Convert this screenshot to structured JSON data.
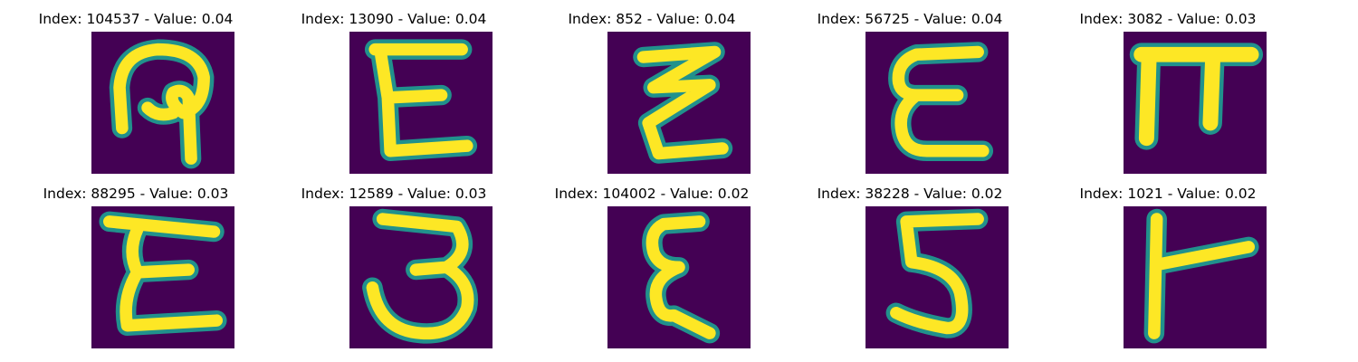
{
  "figure": {
    "colormap": "viridis",
    "background_color": "#440154",
    "stroke_color": "#fde725",
    "edge_color": "#21918c",
    "panels": [
      {
        "title": "Index: 104537 - Value: 0.04",
        "glyph": "hook-glyph"
      },
      {
        "title": "Index: 13090 - Value: 0.04",
        "glyph": "e-glyph"
      },
      {
        "title": "Index: 852 - Value: 0.04",
        "glyph": "zigzag-glyph"
      },
      {
        "title": "Index: 56725 - Value: 0.04",
        "glyph": "epsilon-glyph"
      },
      {
        "title": "Index: 3082 - Value: 0.03",
        "glyph": "pi-glyph"
      },
      {
        "title": "Index: 88295 - Value: 0.03",
        "glyph": "e-glyph"
      },
      {
        "title": "Index: 12589 - Value: 0.03",
        "glyph": "three-glyph"
      },
      {
        "title": "Index: 104002 - Value: 0.02",
        "glyph": "epsilon-glyph"
      },
      {
        "title": "Index: 38228 - Value: 0.02",
        "glyph": "five-glyph"
      },
      {
        "title": "Index: 1021 - Value: 0.02",
        "glyph": "tee-glyph"
      }
    ]
  }
}
